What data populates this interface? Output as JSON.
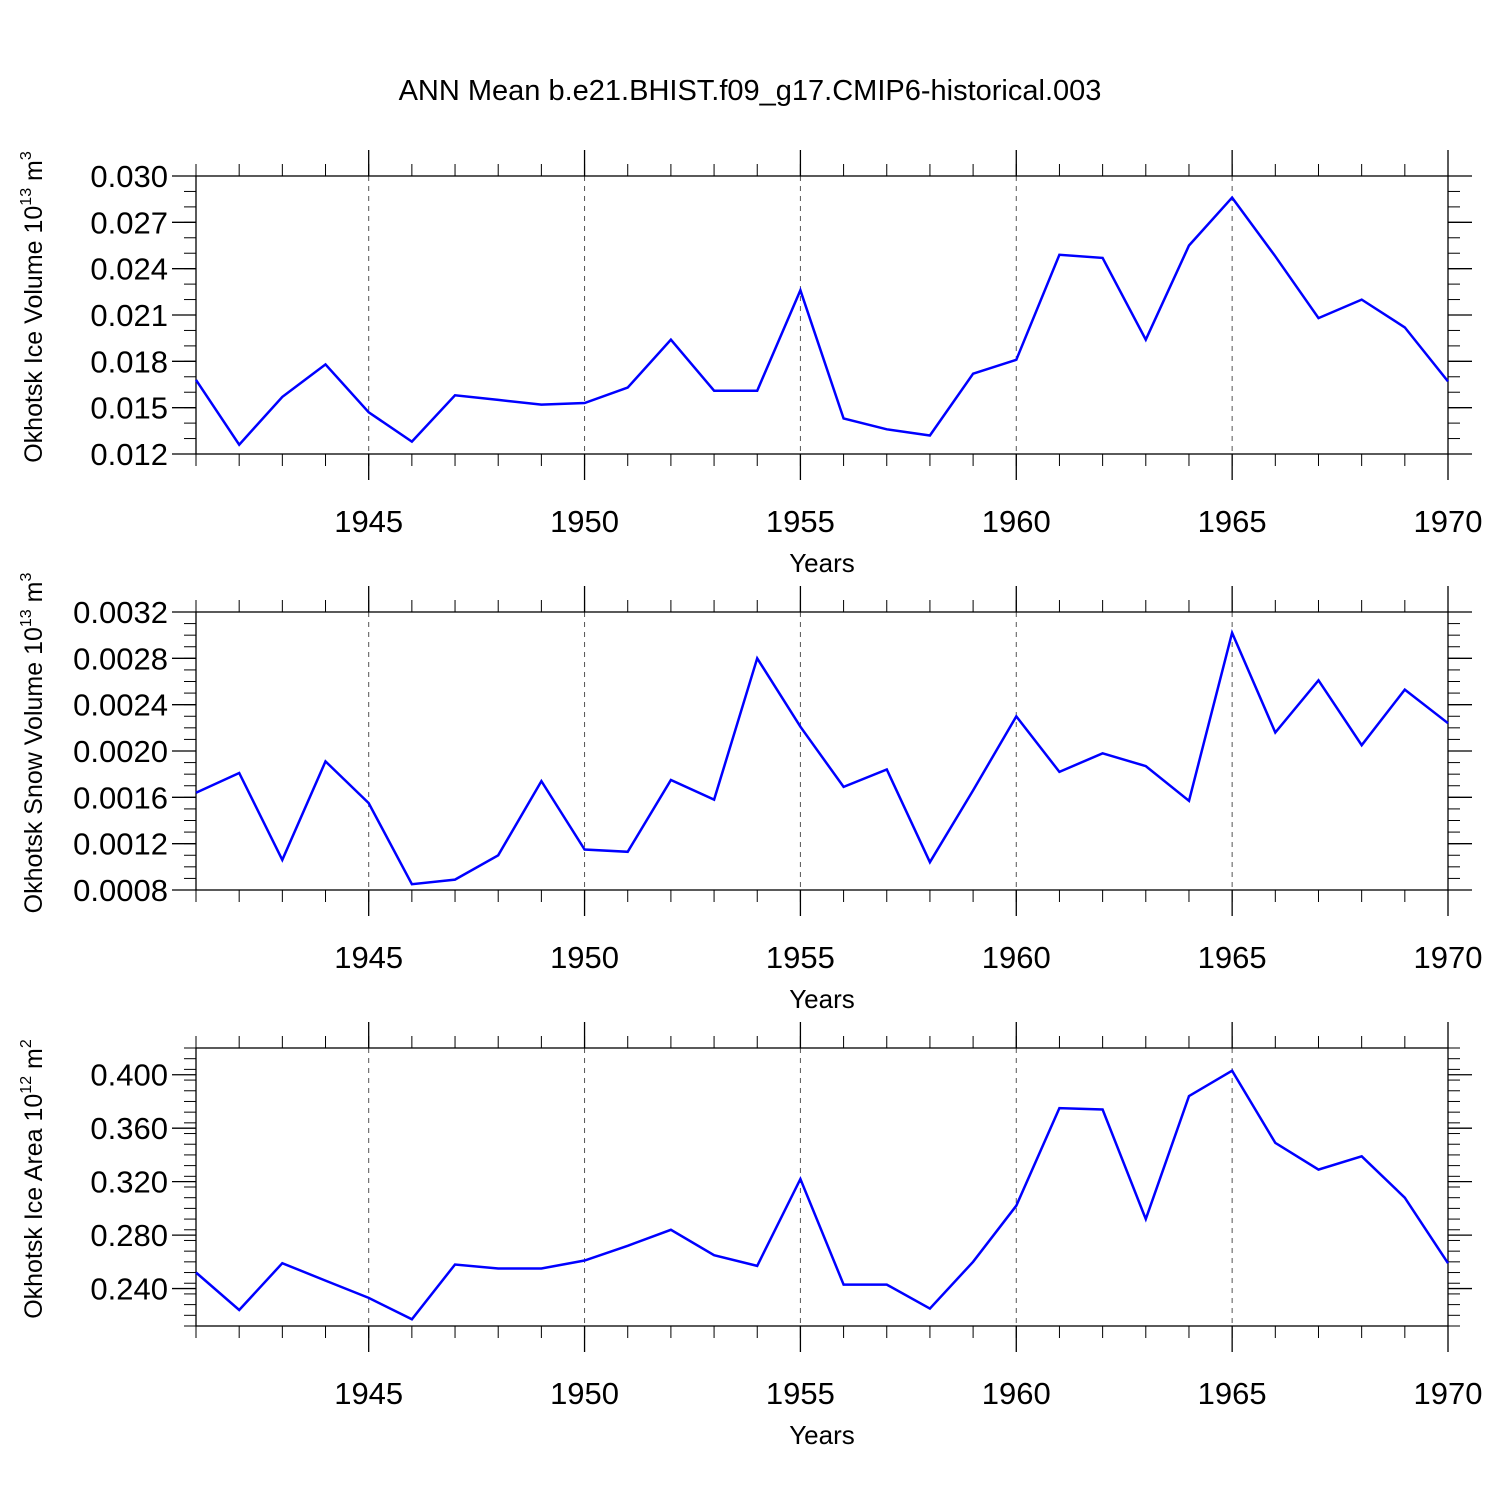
{
  "title": "ANN Mean b.e21.BHIST.f09_g17.CMIP6-historical.003",
  "chart_data": [
    {
      "type": "line",
      "name": "ice-volume",
      "ylabel": "Okhotsk Ice Volume 10",
      "ylabel_exp": "13",
      "ylabel_unit": " m",
      "ylabel_unit_exp": "3",
      "xlabel": "Years",
      "xlim": [
        1941,
        1970
      ],
      "ylim": [
        0.012,
        0.03
      ],
      "yticks": [
        0.012,
        0.015,
        0.018,
        0.021,
        0.024,
        0.027,
        0.03
      ],
      "yticklabels": [
        "0.012",
        "0.015",
        "0.018",
        "0.021",
        "0.024",
        "0.027",
        "0.030"
      ],
      "yminor_step": 0.001,
      "xticks": [
        1945,
        1950,
        1955,
        1960,
        1965,
        1970
      ],
      "xticklabels": [
        "1945",
        "1950",
        "1955",
        "1960",
        "1965",
        "1970"
      ],
      "x": [
        1941,
        1942,
        1943,
        1944,
        1945,
        1946,
        1947,
        1948,
        1949,
        1950,
        1951,
        1952,
        1953,
        1954,
        1955,
        1956,
        1957,
        1958,
        1959,
        1960,
        1961,
        1962,
        1963,
        1964,
        1965,
        1966,
        1967,
        1968,
        1969,
        1970
      ],
      "values": [
        0.0168,
        0.0126,
        0.0157,
        0.0178,
        0.0147,
        0.0128,
        0.0158,
        0.0155,
        0.0152,
        0.0153,
        0.0163,
        0.0194,
        0.0161,
        0.0161,
        0.0226,
        0.0143,
        0.0136,
        0.0132,
        0.0172,
        0.0181,
        0.0249,
        0.0247,
        0.0194,
        0.0255,
        0.0286,
        0.0248,
        0.0208,
        0.022,
        0.0202,
        0.0167
      ]
    },
    {
      "type": "line",
      "name": "snow-volume",
      "ylabel": "Okhotsk Snow Volume 10",
      "ylabel_exp": "13",
      "ylabel_unit": " m",
      "ylabel_unit_exp": "3",
      "xlabel": "Years",
      "xlim": [
        1941,
        1970
      ],
      "ylim": [
        0.0008,
        0.0032
      ],
      "yticks": [
        0.0008,
        0.0012,
        0.0016,
        0.002,
        0.0024,
        0.0028,
        0.0032
      ],
      "yticklabels": [
        "0.0008",
        "0.0012",
        "0.0016",
        "0.0020",
        "0.0024",
        "0.0028",
        "0.0032"
      ],
      "yminor_step": 0.0001,
      "xticks": [
        1945,
        1950,
        1955,
        1960,
        1965,
        1970
      ],
      "xticklabels": [
        "1945",
        "1950",
        "1955",
        "1960",
        "1965",
        "1970"
      ],
      "x": [
        1941,
        1942,
        1943,
        1944,
        1945,
        1946,
        1947,
        1948,
        1949,
        1950,
        1951,
        1952,
        1953,
        1954,
        1955,
        1956,
        1957,
        1958,
        1959,
        1960,
        1961,
        1962,
        1963,
        1964,
        1965,
        1966,
        1967,
        1968,
        1969,
        1970
      ],
      "values": [
        0.00164,
        0.00181,
        0.00106,
        0.00191,
        0.00155,
        0.00085,
        0.00089,
        0.0011,
        0.00174,
        0.00115,
        0.00113,
        0.00175,
        0.00158,
        0.0028,
        0.00221,
        0.00169,
        0.00184,
        0.00104,
        0.00166,
        0.0023,
        0.00182,
        0.00198,
        0.00187,
        0.00157,
        0.00302,
        0.00216,
        0.00261,
        0.00205,
        0.00253,
        0.00224
      ]
    },
    {
      "type": "line",
      "name": "ice-area",
      "ylabel": "Okhotsk Ice Area 10",
      "ylabel_exp": "12",
      "ylabel_unit": " m",
      "ylabel_unit_exp": "2",
      "xlabel": "Years",
      "xlim": [
        1941,
        1970
      ],
      "ylim": [
        0.212,
        0.42
      ],
      "yticks": [
        0.24,
        0.28,
        0.32,
        0.36,
        0.4
      ],
      "yticklabels": [
        "0.240",
        "0.280",
        "0.320",
        "0.360",
        "0.400"
      ],
      "yminor_step": 0.008,
      "xticks": [
        1945,
        1950,
        1955,
        1960,
        1965,
        1970
      ],
      "xticklabels": [
        "1945",
        "1950",
        "1955",
        "1960",
        "1965",
        "1970"
      ],
      "x": [
        1941,
        1942,
        1943,
        1944,
        1945,
        1946,
        1947,
        1948,
        1949,
        1950,
        1951,
        1952,
        1953,
        1954,
        1955,
        1956,
        1957,
        1958,
        1959,
        1960,
        1961,
        1962,
        1963,
        1964,
        1965,
        1966,
        1967,
        1968,
        1969,
        1970
      ],
      "values": [
        0.252,
        0.224,
        0.259,
        0.246,
        0.233,
        0.217,
        0.258,
        0.255,
        0.255,
        0.261,
        0.272,
        0.284,
        0.265,
        0.257,
        0.322,
        0.243,
        0.243,
        0.225,
        0.26,
        0.302,
        0.375,
        0.374,
        0.292,
        0.384,
        0.403,
        0.349,
        0.329,
        0.339,
        0.308,
        0.259
      ]
    }
  ]
}
